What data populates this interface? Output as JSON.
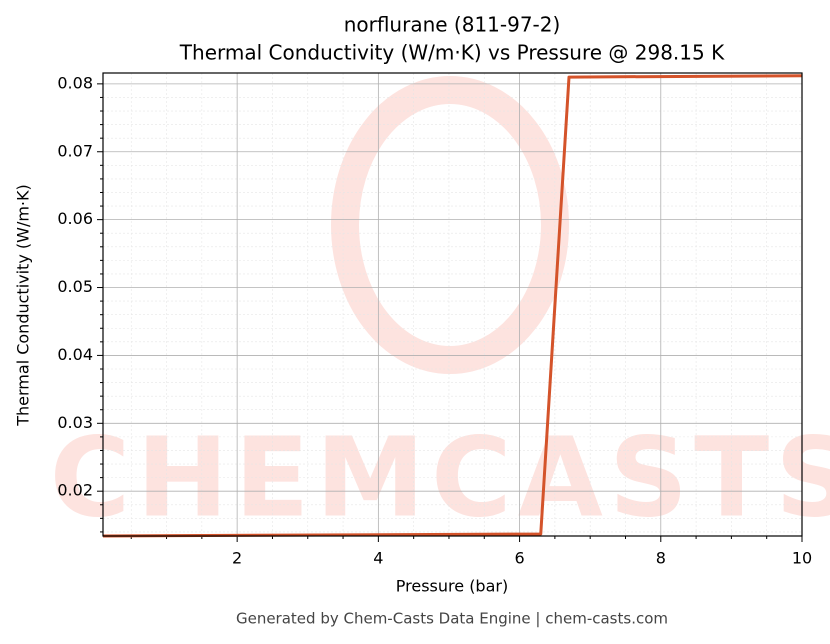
{
  "chart_data": {
    "type": "line",
    "title": "norflurane (811-97-2)",
    "subtitle": "Thermal Conductivity (W/m·K) vs Pressure @ 298.15 K",
    "x_label": "Pressure (bar)",
    "y_label": "Thermal Conductivity (W/m·K)",
    "footer": "Generated by Chem-Casts Data Engine | chem-casts.com",
    "watermark": "CHEMCASTS",
    "x": [
      0.1,
      6.3,
      6.7,
      10
    ],
    "series": [
      {
        "name": "Thermal Conductivity",
        "color": "#d4532a",
        "values": [
          0.0134,
          0.0137,
          0.081,
          0.0812
        ]
      }
    ],
    "xlim": [
      0.1,
      10
    ],
    "ylim": [
      0.0134,
      0.0816
    ],
    "xticks": [
      2,
      4,
      6,
      8,
      10
    ],
    "yticks": [
      0.02,
      0.03,
      0.04,
      0.05,
      0.06,
      0.07,
      0.08
    ],
    "xminorticks": [
      0.5,
      1,
      1.5,
      2.5,
      3,
      3.5,
      4.5,
      5,
      5.5,
      6.5,
      7,
      7.5,
      8.5,
      9,
      9.5
    ],
    "yminorticks": [
      0.014,
      0.016,
      0.018,
      0.022,
      0.024,
      0.026,
      0.028,
      0.032,
      0.034,
      0.036,
      0.038,
      0.042,
      0.044,
      0.046,
      0.048,
      0.052,
      0.054,
      0.056,
      0.058,
      0.062,
      0.064,
      0.066,
      0.068,
      0.072,
      0.074,
      0.076,
      0.078
    ],
    "grid": true
  }
}
